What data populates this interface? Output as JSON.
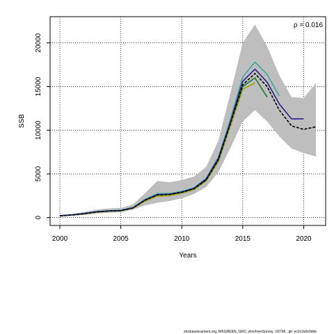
{
  "chart_data": {
    "type": "line",
    "title": "",
    "xlabel": "Years",
    "ylabel": "SSB",
    "xlim": [
      1999.2,
      2021.8
    ],
    "ylim": [
      -900,
      23000
    ],
    "xticks": [
      2000,
      2005,
      2010,
      2015,
      2020
    ],
    "yticks": [
      0,
      5000,
      10000,
      15000,
      20000
    ],
    "grid": true,
    "annotation": "ρ = 0.016",
    "confidence_band": {
      "x": [
        2000,
        2001,
        2002,
        2003,
        2004,
        2005,
        2006,
        2007,
        2008,
        2009,
        2010,
        2011,
        2012,
        2013,
        2014,
        2015,
        2016,
        2017,
        2018,
        2019,
        2020,
        2021
      ],
      "lower": [
        100,
        200,
        300,
        450,
        550,
        600,
        900,
        1400,
        1700,
        1900,
        2200,
        2700,
        3500,
        5200,
        8000,
        11000,
        12300,
        11000,
        9300,
        7900,
        7400,
        7000
      ],
      "upper": [
        300,
        400,
        650,
        900,
        1050,
        1100,
        1500,
        2800,
        4200,
        4050,
        4300,
        4700,
        5800,
        8800,
        14300,
        20000,
        22100,
        19600,
        16300,
        13800,
        13700,
        15400
      ],
      "color": "#bebebe"
    },
    "series": [
      {
        "x": [
          2000,
          2001,
          2002,
          2003,
          2004,
          2005,
          2006,
          2007,
          2008,
          2009,
          2010,
          2011,
          2012,
          2013,
          2014,
          2015,
          2016,
          2017,
          2018,
          2019,
          2020,
          2021
        ],
        "values": [
          200,
          300,
          450,
          650,
          750,
          800,
          1100,
          2000,
          2600,
          2650,
          2900,
          3300,
          4300,
          6600,
          10800,
          15200,
          16500,
          15000,
          12300,
          10500,
          10100,
          10400
        ],
        "color": "#000000",
        "dash": true
      },
      {
        "x": [
          2000,
          2001,
          2002,
          2003,
          2004,
          2005,
          2006,
          2007,
          2008,
          2009,
          2010,
          2011,
          2012,
          2013,
          2014,
          2015,
          2016,
          2017,
          2018,
          2019,
          2020
        ],
        "values": [
          210,
          310,
          460,
          660,
          760,
          810,
          1120,
          2020,
          2620,
          2680,
          2930,
          3350,
          4400,
          6800,
          11000,
          15600,
          17000,
          15500,
          13000,
          11300,
          11300
        ],
        "color": "#2a1f8a",
        "dash": false
      },
      {
        "x": [
          2000,
          2001,
          2002,
          2003,
          2004,
          2005,
          2006,
          2007,
          2008,
          2009,
          2010,
          2011,
          2012,
          2013,
          2014,
          2015,
          2016,
          2017,
          2018
        ],
        "values": [
          220,
          320,
          480,
          690,
          790,
          840,
          1160,
          2100,
          2750,
          2750,
          3000,
          3400,
          4500,
          6900,
          11300,
          16100,
          17800,
          16400,
          13900
        ],
        "color": "#3aa5a0",
        "dash": false
      },
      {
        "x": [
          2000,
          2001,
          2002,
          2003,
          2004,
          2005,
          2006,
          2007,
          2008,
          2009,
          2010,
          2011,
          2012,
          2013,
          2014,
          2015,
          2016,
          2017
        ],
        "values": [
          205,
          305,
          450,
          650,
          750,
          800,
          1100,
          2020,
          2600,
          2650,
          2900,
          3300,
          4300,
          6600,
          10900,
          15000,
          16000,
          13800
        ],
        "color": "#1b7a2a",
        "dash": false
      },
      {
        "x": [
          2000,
          2001,
          2002,
          2003,
          2004,
          2005,
          2006,
          2007,
          2008,
          2009,
          2010,
          2011,
          2012,
          2013,
          2014,
          2015,
          2016
        ],
        "values": [
          200,
          300,
          420,
          620,
          720,
          780,
          1070,
          1900,
          2450,
          2500,
          2800,
          3200,
          4200,
          6400,
          10500,
          14700,
          15400
        ],
        "color": "#a0a000",
        "dash": false
      }
    ]
  },
  "footer": "stockassessment.org,  WKGREEN_GRO_wInshoreSurvey,  r16796 ,  git: ec2c2a0c6dde"
}
